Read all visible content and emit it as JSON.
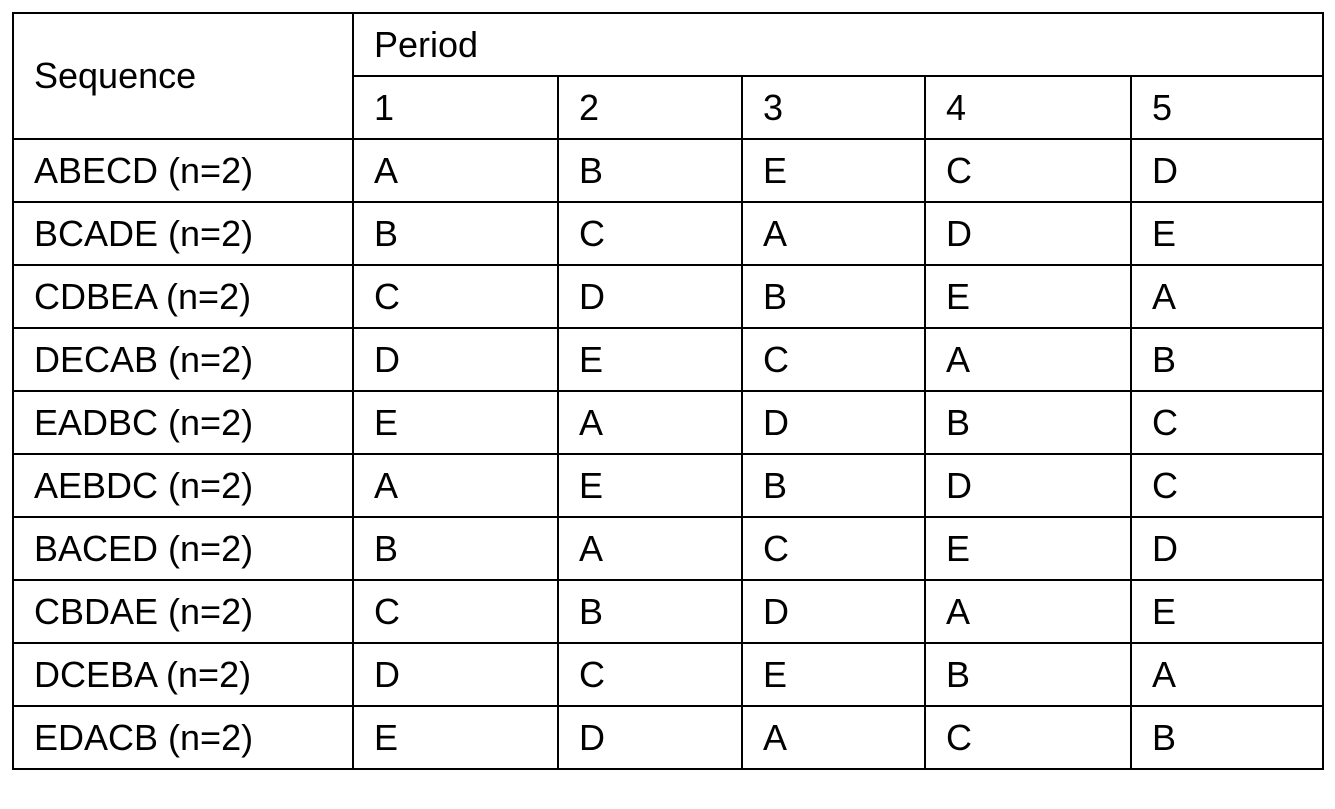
{
  "table": {
    "header": {
      "sequence": "Sequence",
      "period": "Period",
      "periods": [
        1,
        2,
        3,
        4,
        5
      ]
    },
    "rows": [
      [
        "ABECD (n=2)",
        "A",
        "B",
        "E",
        "C",
        "D"
      ],
      [
        "BCADE (n=2)",
        "B",
        "C",
        "A",
        "D",
        "E"
      ],
      [
        "CDBEA (n=2)",
        "C",
        "D",
        "B",
        "E",
        "A"
      ],
      [
        "DECAB (n=2)",
        "D",
        "E",
        "C",
        "A",
        "B"
      ],
      [
        "EADBC (n=2)",
        "E",
        "A",
        "D",
        "B",
        "C"
      ],
      [
        "AEBDC (n=2)",
        "A",
        "E",
        "B",
        "D",
        "C"
      ],
      [
        "BACED (n=2)",
        "B",
        "A",
        "C",
        "E",
        "D"
      ],
      [
        "CBDAE (n=2)",
        "C",
        "B",
        "D",
        "A",
        "E"
      ],
      [
        "DCEBA (n=2)",
        "D",
        "C",
        "E",
        "B",
        "A"
      ],
      [
        "EDACB (n=2)",
        "E",
        "D",
        "A",
        "C",
        "B"
      ]
    ]
  }
}
